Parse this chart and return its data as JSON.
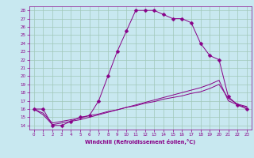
{
  "xlabel": "Windchill (Refroidissement éolien,°C)",
  "xlim": [
    -0.5,
    23.5
  ],
  "ylim": [
    13.5,
    28.5
  ],
  "yticks": [
    14,
    15,
    16,
    17,
    18,
    19,
    20,
    21,
    22,
    23,
    24,
    25,
    26,
    27,
    28
  ],
  "xticks": [
    0,
    1,
    2,
    3,
    4,
    5,
    6,
    7,
    8,
    9,
    10,
    11,
    12,
    13,
    14,
    15,
    16,
    17,
    18,
    19,
    20,
    21,
    22,
    23
  ],
  "background_color": "#c8e8f0",
  "grid_color": "#a0c8b8",
  "line_color": "#880088",
  "lines": [
    {
      "x": [
        0,
        1,
        2,
        3,
        4,
        5,
        6,
        7,
        8,
        9,
        10,
        11,
        12,
        13,
        14,
        15,
        16,
        17,
        18,
        19,
        20,
        21,
        22,
        23
      ],
      "y": [
        16,
        16,
        14,
        14,
        14.5,
        15,
        15.2,
        17,
        20,
        23,
        25.5,
        28,
        28,
        28,
        27.5,
        27,
        27,
        26.5,
        24,
        22.5,
        22,
        17.5,
        16.5,
        16
      ],
      "marker": "D",
      "markersize": 2.5
    },
    {
      "x": [
        0,
        1,
        2,
        3,
        4,
        5,
        6,
        7,
        8,
        9,
        10,
        11,
        12,
        13,
        14,
        15,
        16,
        17,
        18,
        19,
        20,
        21,
        22,
        23
      ],
      "y": [
        16,
        15.3,
        14.1,
        14.3,
        14.5,
        14.7,
        15.0,
        15.3,
        15.6,
        15.9,
        16.2,
        16.5,
        16.8,
        17.1,
        17.4,
        17.7,
        18.0,
        18.3,
        18.6,
        19.0,
        19.5,
        17.0,
        16.5,
        16.2
      ],
      "marker": null,
      "markersize": 0
    },
    {
      "x": [
        0,
        1,
        2,
        3,
        4,
        5,
        6,
        7,
        8,
        9,
        10,
        11,
        12,
        13,
        14,
        15,
        16,
        17,
        18,
        19,
        20,
        21,
        22,
        23
      ],
      "y": [
        16,
        15.5,
        14.3,
        14.5,
        14.7,
        14.9,
        15.2,
        15.4,
        15.7,
        15.9,
        16.2,
        16.4,
        16.7,
        16.9,
        17.2,
        17.4,
        17.6,
        17.9,
        18.1,
        18.5,
        19.0,
        17.3,
        16.6,
        16.3
      ],
      "marker": null,
      "markersize": 0
    }
  ]
}
